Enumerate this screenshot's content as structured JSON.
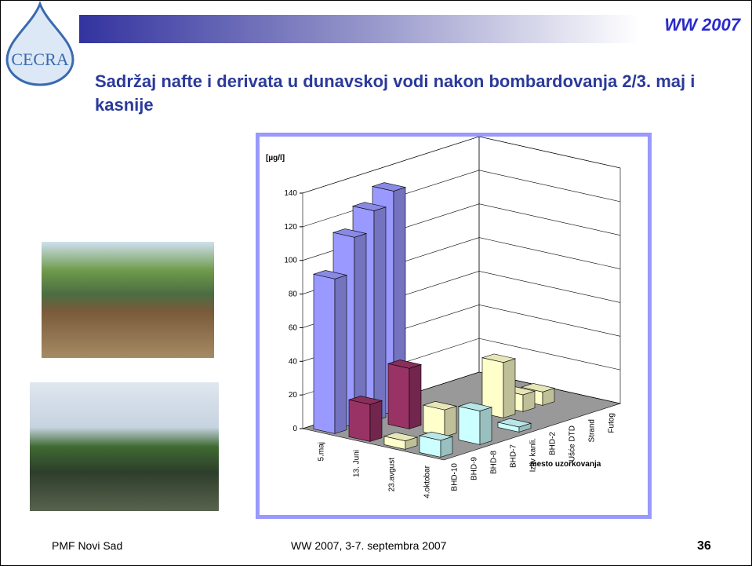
{
  "header": {
    "logo_left": "CECRA",
    "logo_right": "WW 2007"
  },
  "title": "Sadržaj nafte i derivata u dunavskoj vodi nakon bombardovanja 2/3. maj i kasnije",
  "footer": {
    "left": "PMF Novi Sad",
    "center": "WW 2007, 3-7. septembra 2007",
    "page": "36"
  },
  "chart_data": {
    "type": "bar3d",
    "y_label": "[µg/l]",
    "x_label": "mesto uzorkovanja",
    "categories": [
      "BHD-10",
      "BHD-9",
      "BHD-8",
      "BHD-7",
      "Izliv kanli.",
      "BHD-2",
      "Ušće DTD",
      "Strand",
      "Futog"
    ],
    "series": [
      {
        "name": "5.maj",
        "color": "#9999ff",
        "values": [
          92,
          113,
          125,
          133,
          null,
          null,
          null,
          null,
          null
        ]
      },
      {
        "name": "13. Juni",
        "color": "#993366",
        "values": [
          22,
          null,
          36,
          null,
          null,
          null,
          null,
          null,
          null
        ]
      },
      {
        "name": "23.avgust",
        "color": "#ffffcc",
        "values": [
          5,
          null,
          16,
          null,
          null,
          33,
          10,
          8,
          null
        ]
      },
      {
        "name": "4.oktobar",
        "color": "#ccffff",
        "values": [
          10,
          null,
          20,
          null,
          3,
          null,
          null,
          null,
          null
        ]
      }
    ],
    "ylim": [
      0,
      140
    ],
    "yticks": [
      0,
      20,
      40,
      60,
      80,
      100,
      120,
      140
    ],
    "grid": true,
    "floor_color": "#999999"
  }
}
